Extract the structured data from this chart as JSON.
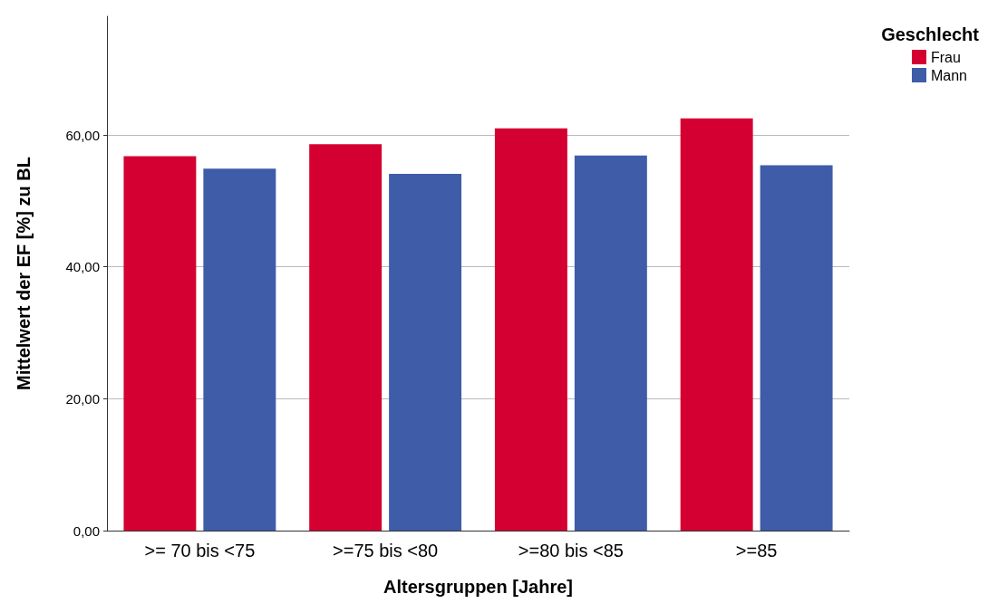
{
  "chart_data": {
    "type": "bar",
    "xlabel": "Altersgruppen [Jahre]",
    "ylabel": "Mittelwert der EF [%] zu BL",
    "legend_title": "Geschlecht",
    "legend": "top right",
    "categories": [
      ">= 70 bis <75",
      ">=75 bis <80",
      ">=80 bis <85",
      ">=85"
    ],
    "series": [
      {
        "name": "Frau",
        "color": "#d50032",
        "values": [
          56.8,
          58.6,
          61.0,
          62.5
        ]
      },
      {
        "name": "Mann",
        "color": "#3f5ca9",
        "values": [
          54.9,
          54.1,
          56.9,
          55.4
        ]
      }
    ],
    "ylim": [
      0,
      78
    ],
    "yticks": [
      {
        "value": 0,
        "label": "0,00"
      },
      {
        "value": 20,
        "label": "20,00"
      },
      {
        "value": 40,
        "label": "40,00"
      },
      {
        "value": 60,
        "label": "60,00"
      }
    ],
    "grid": "y"
  }
}
